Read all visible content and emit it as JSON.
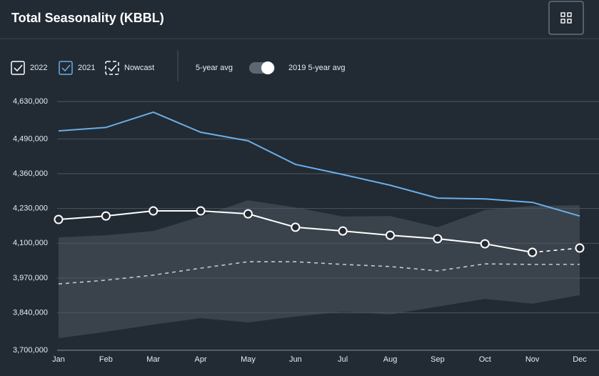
{
  "header": {
    "title": "Total Seasonality (KBBL)"
  },
  "controls": {
    "toggle_label": "2019 5-year avg"
  },
  "chart_data": {
    "type": "line",
    "categories": [
      "Jan",
      "Feb",
      "Mar",
      "Apr",
      "May",
      "Jun",
      "Jul",
      "Aug",
      "Sep",
      "Oct",
      "Nov",
      "Dec"
    ],
    "ylim": [
      3700000,
      4630000
    ],
    "yticks": [
      {
        "value": 3700000,
        "label": "3,700,000"
      },
      {
        "value": 3840000,
        "label": "3,840,000"
      },
      {
        "value": 3970000,
        "label": "3,970,000"
      },
      {
        "value": 4100000,
        "label": "4,100,000"
      },
      {
        "value": 4230000,
        "label": "4,230,000"
      },
      {
        "value": 4360000,
        "label": "4,360,000"
      },
      {
        "value": 4490000,
        "label": "4,490,000"
      },
      {
        "value": 4630000,
        "label": "4,630,000"
      }
    ],
    "grid": true,
    "series": [
      {
        "name": "2022",
        "color": "#ffffff",
        "style": "solid",
        "markers": true,
        "values": [
          4189000,
          4202000,
          4221000,
          4221000,
          4210000,
          4160000,
          4146000,
          4130000,
          4117000,
          4098000,
          4066000,
          null
        ]
      },
      {
        "name": "2021",
        "color": "#6aaee8",
        "style": "solid",
        "markers": false,
        "values": [
          4520000,
          4533000,
          4590000,
          4515000,
          4483000,
          4395000,
          4357000,
          4317000,
          4269000,
          4266000,
          4253000,
          4202000
        ]
      },
      {
        "name": "Nowcast",
        "color": "#ffffff",
        "style": "dashed",
        "markers": true,
        "values": [
          null,
          null,
          null,
          null,
          null,
          null,
          null,
          null,
          null,
          null,
          4066000,
          4082000
        ]
      },
      {
        "name": "5-year avg",
        "color": "#c4c9cf",
        "style": "dashed",
        "markers": false,
        "values": [
          3948000,
          3962000,
          3981000,
          4007000,
          4031000,
          4031000,
          4021000,
          4013000,
          3997000,
          4023000,
          4021000,
          4021000
        ]
      }
    ],
    "range": {
      "color": "#3a424b",
      "high": [
        4122000,
        4130000,
        4146000,
        4200000,
        4261000,
        4234000,
        4200000,
        4202000,
        4160000,
        4224000,
        4240000,
        4242000
      ],
      "low": [
        3745000,
        3769000,
        3796000,
        3820000,
        3804000,
        3826000,
        3844000,
        3834000,
        3863000,
        3892000,
        3874000,
        3906000
      ]
    }
  }
}
